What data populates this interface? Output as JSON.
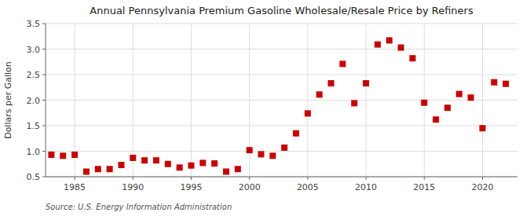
{
  "chart_data": {
    "type": "scatter",
    "title": "Annual Pennsylvania Premium Gasoline Wholesale/Resale Price by Refiners",
    "ylabel": "Dollars per Gallon",
    "source": "Source: U.S. Energy Information Administration",
    "x": [
      1983,
      1984,
      1985,
      1986,
      1987,
      1988,
      1989,
      1990,
      1991,
      1992,
      1993,
      1994,
      1995,
      1996,
      1997,
      1998,
      1999,
      2000,
      2001,
      2002,
      2003,
      2004,
      2005,
      2006,
      2007,
      2008,
      2009,
      2010,
      2011,
      2012,
      2013,
      2014,
      2015,
      2016,
      2017,
      2018,
      2019,
      2020,
      2021,
      2022
    ],
    "values": [
      0.93,
      0.91,
      0.93,
      0.6,
      0.65,
      0.65,
      0.73,
      0.87,
      0.82,
      0.82,
      0.75,
      0.68,
      0.72,
      0.77,
      0.76,
      0.6,
      0.65,
      1.02,
      0.94,
      0.91,
      1.07,
      1.35,
      1.74,
      2.11,
      2.33,
      2.71,
      1.94,
      2.33,
      3.09,
      3.17,
      3.03,
      2.82,
      1.95,
      1.62,
      1.85,
      2.12,
      2.05,
      1.45,
      2.35,
      2.32
    ],
    "color": "#cc0000",
    "marker": "square",
    "xlim": [
      1982.5,
      2023
    ],
    "ylim": [
      0.5,
      3.5
    ],
    "xticks": [
      1985,
      1990,
      1995,
      2000,
      2005,
      2010,
      2015,
      2020
    ],
    "yticks": [
      0.5,
      {
        "value": 1.0,
        "label": "1.0"
      },
      1.5,
      {
        "value": 2.0,
        "label": "2.0"
      },
      2.5,
      {
        "value": 3.0,
        "label": "3.0"
      },
      3.5
    ],
    "grid": true
  }
}
